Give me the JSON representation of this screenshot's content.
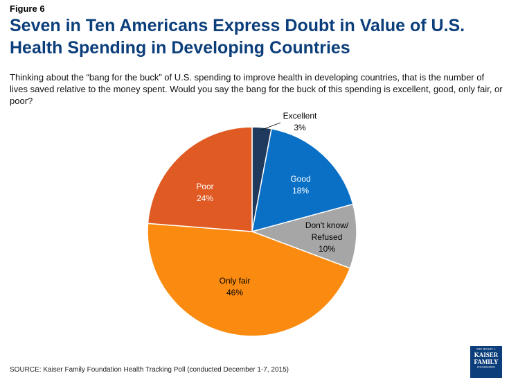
{
  "figure_label": "Figure 6",
  "title": "Seven in Ten Americans Express Doubt in Value of U.S. Health Spending in Developing Countries",
  "subtitle": "Thinking about the “bang for the buck” of U.S. spending to improve health in developing countries, that is the number of lives saved relative to the money spent. Would you say the bang for the buck of this spending is excellent, good, only fair, or poor?",
  "source": "SOURCE: Kaiser Family Foundation Health Tracking Poll (conducted December 1-7, 2015)",
  "logo": {
    "line1": "THE HENRY J.",
    "line2": "KAISER",
    "line3": "FAMILY",
    "line4": "FOUNDATION"
  },
  "chart_data": {
    "type": "pie",
    "title": "",
    "slices": [
      {
        "label": "Excellent",
        "value": 3,
        "value_label": "3%",
        "color": "#1f3a5c",
        "label_color": "#000000"
      },
      {
        "label": "Good",
        "value": 18,
        "value_label": "18%",
        "color": "#0a70c6",
        "label_color": "#ffffff"
      },
      {
        "label": "Don't know/ Refused",
        "label_lines": [
          "Don't know/",
          "Refused"
        ],
        "value": 10,
        "value_label": "10%",
        "color": "#a6a6a6",
        "label_color": "#000000"
      },
      {
        "label": "Only fair",
        "value": 46,
        "value_label": "46%",
        "color": "#fb8b10",
        "label_color": "#000000"
      },
      {
        "label": "Poor",
        "value": 24,
        "value_label": "24%",
        "color": "#e05a24",
        "label_color": "#ffffff"
      }
    ]
  }
}
